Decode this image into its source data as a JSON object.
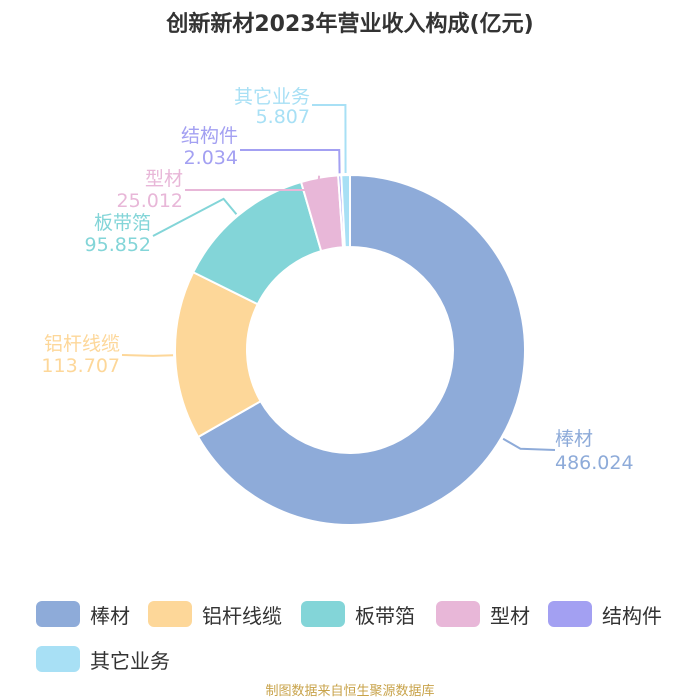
{
  "title": "创新新材2023年营业收入构成(亿元)",
  "source_note": "制图数据来自恒生聚源数据库",
  "chart_data": {
    "type": "pie",
    "title": "创新新材2023年营业收入构成(亿元)",
    "donut": true,
    "legend_position": "bottom",
    "series": [
      {
        "name": "棒材",
        "value": 486.024,
        "value_label": "486.024",
        "color": "#8eabd9"
      },
      {
        "name": "铝杆线缆",
        "value": 113.707,
        "value_label": "113.707",
        "color": "#fdd799"
      },
      {
        "name": "板带箔",
        "value": 95.852,
        "value_label": "95.852",
        "color": "#83d5d8"
      },
      {
        "name": "型材",
        "value": 25.012,
        "value_label": "25.012",
        "color": "#e8b7d8"
      },
      {
        "name": "结构件",
        "value": 2.034,
        "value_label": "2.034",
        "color": "#a3a0f2"
      },
      {
        "name": "其它业务",
        "value": 5.807,
        "value_label": "5.807",
        "color": "#a8e0f5"
      }
    ]
  }
}
